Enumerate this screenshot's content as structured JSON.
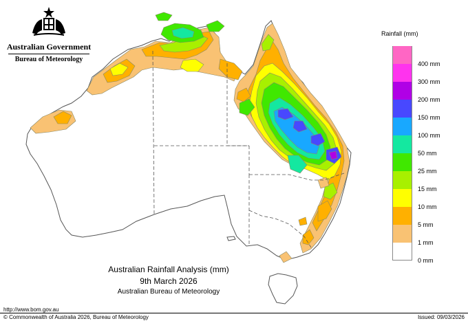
{
  "header": {
    "government": "Australian Government",
    "bureau": "Bureau of Meteorology"
  },
  "legend": {
    "title": "Rainfall (mm)",
    "items": [
      {
        "label": "",
        "color": "#ff66c4"
      },
      {
        "label": "400 mm",
        "color": "#ff33ee"
      },
      {
        "label": "300 mm",
        "color": "#b000e6"
      },
      {
        "label": "200 mm",
        "color": "#4848ff"
      },
      {
        "label": "150 mm",
        "color": "#18a8ff"
      },
      {
        "label": "100 mm",
        "color": "#14e8a0"
      },
      {
        "label": "50 mm",
        "color": "#40e800"
      },
      {
        "label": "25 mm",
        "color": "#a8f000"
      },
      {
        "label": "15 mm",
        "color": "#ffff00"
      },
      {
        "label": "10 mm",
        "color": "#ffb000"
      },
      {
        "label": "5 mm",
        "color": "#f9c273"
      },
      {
        "label": "1 mm",
        "color": "#ffffff"
      },
      {
        "label": "0 mm",
        "color": ""
      }
    ]
  },
  "map_title": {
    "line1": "Australian Rainfall Analysis (mm)",
    "line2": "9th March 2026",
    "line3": "Australian Bureau of Meteorology"
  },
  "footer": {
    "url": "http://www.bom.gov.au",
    "copyright": "© Commonwealth of Australia 2026, Bureau of Meteorology",
    "issued": "Issued: 09/03/2026"
  }
}
